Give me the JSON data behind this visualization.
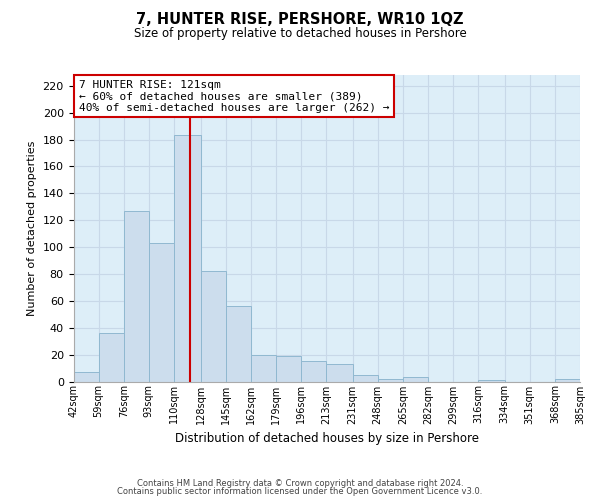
{
  "title": "7, HUNTER RISE, PERSHORE, WR10 1QZ",
  "subtitle": "Size of property relative to detached houses in Pershore",
  "xlabel": "Distribution of detached houses by size in Pershore",
  "ylabel": "Number of detached properties",
  "bar_edges": [
    42,
    59,
    76,
    93,
    110,
    128,
    145,
    162,
    179,
    196,
    213,
    231,
    248,
    265,
    282,
    299,
    316,
    334,
    351,
    368,
    385
  ],
  "bar_heights": [
    7,
    36,
    127,
    103,
    183,
    82,
    56,
    20,
    19,
    15,
    13,
    5,
    2,
    3,
    0,
    0,
    1,
    0,
    0,
    2
  ],
  "bar_color": "#ccdded",
  "bar_edge_color": "#90b8d0",
  "bg_color": "#ddeef8",
  "ylim": [
    0,
    228
  ],
  "yticks": [
    0,
    20,
    40,
    60,
    80,
    100,
    120,
    140,
    160,
    180,
    200,
    220
  ],
  "vline_x": 121,
  "vline_color": "#cc0000",
  "ann_title": "7 HUNTER RISE: 121sqm",
  "ann_line2": "← 60% of detached houses are smaller (389)",
  "ann_line3": "40% of semi-detached houses are larger (262) →",
  "annotation_box_color": "#ffffff",
  "annotation_box_edge": "#cc0000",
  "footer_line1": "Contains HM Land Registry data © Crown copyright and database right 2024.",
  "footer_line2": "Contains public sector information licensed under the Open Government Licence v3.0.",
  "background_color": "#ffffff",
  "grid_color": "#c8d8e8",
  "tick_labels": [
    "42sqm",
    "59sqm",
    "76sqm",
    "93sqm",
    "110sqm",
    "128sqm",
    "145sqm",
    "162sqm",
    "179sqm",
    "196sqm",
    "213sqm",
    "231sqm",
    "248sqm",
    "265sqm",
    "282sqm",
    "299sqm",
    "316sqm",
    "334sqm",
    "351sqm",
    "368sqm",
    "385sqm"
  ]
}
